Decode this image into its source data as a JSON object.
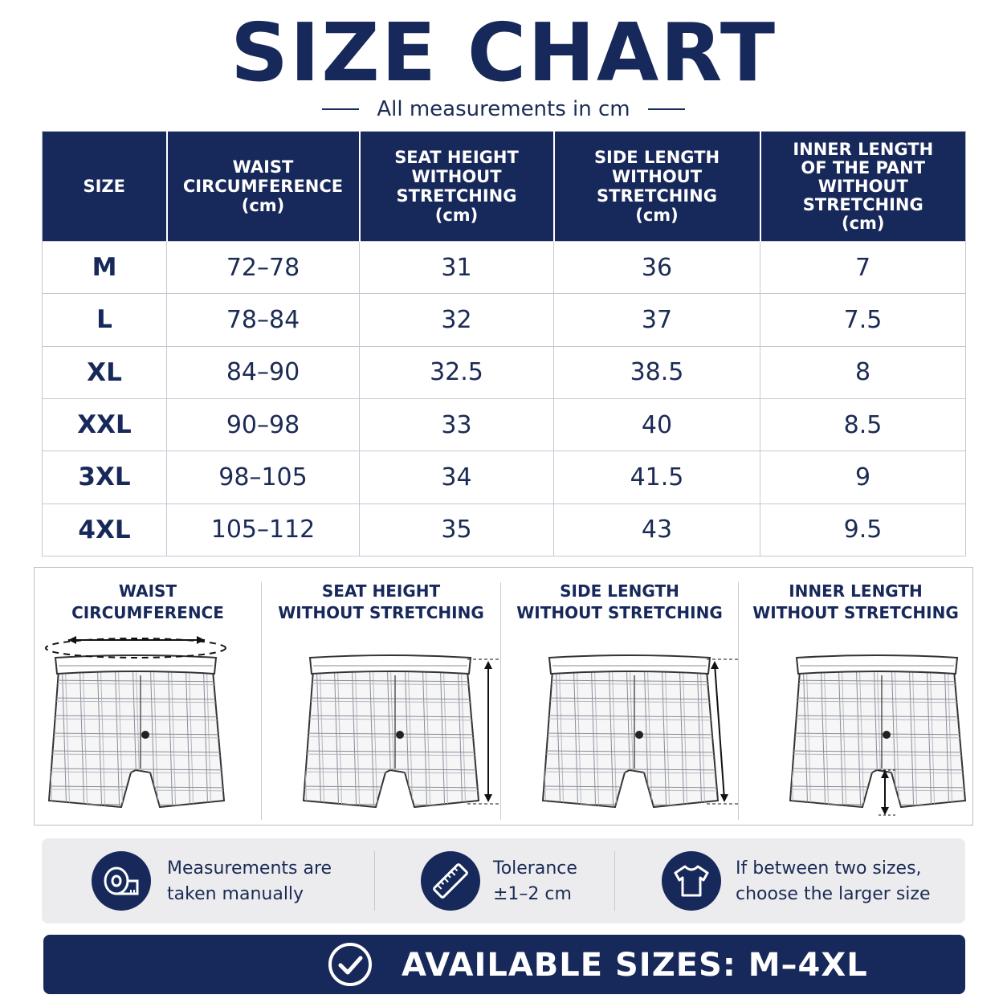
{
  "title": "SIZE CHART",
  "subtitle": "All measurements in cm",
  "table": {
    "headers": [
      [
        "SIZE"
      ],
      [
        "WAIST",
        "CIRCUMFERENCE",
        "(cm)"
      ],
      [
        "SEAT HEIGHT",
        "WITHOUT",
        "STRETCHING",
        "(cm)"
      ],
      [
        "SIDE LENGTH",
        "WITHOUT",
        "STRETCHING",
        "(cm)"
      ],
      [
        "INNER LENGTH",
        "OF THE PANT",
        "WITHOUT",
        "STRETCHING",
        "(cm)"
      ]
    ],
    "rows": [
      [
        "M",
        "72–78",
        "31",
        "36",
        "7"
      ],
      [
        "L",
        "78–84",
        "32",
        "37",
        "7.5"
      ],
      [
        "XL",
        "84–90",
        "32.5",
        "38.5",
        "8"
      ],
      [
        "XXL",
        "90–98",
        "33",
        "40",
        "8.5"
      ],
      [
        "3XL",
        "98–105",
        "34",
        "41.5",
        "9"
      ],
      [
        "4XL",
        "105–112",
        "35",
        "43",
        "9.5"
      ]
    ]
  },
  "diagrams": [
    {
      "label": [
        "WAIST",
        "CIRCUMFERENCE"
      ],
      "measure": "waist"
    },
    {
      "label": [
        "SEAT HEIGHT",
        "WITHOUT STRETCHING"
      ],
      "measure": "seat"
    },
    {
      "label": [
        "SIDE LENGTH",
        "WITHOUT STRETCHING"
      ],
      "measure": "side"
    },
    {
      "label": [
        "INNER LENGTH",
        "WITHOUT STRETCHING"
      ],
      "measure": "inner"
    }
  ],
  "info": [
    {
      "icon": "measuring-tape-icon",
      "lines": [
        "Measurements are",
        "taken manually"
      ]
    },
    {
      "icon": "ruler-icon",
      "lines": [
        "Tolerance",
        "±1–2 cm"
      ]
    },
    {
      "icon": "tshirt-icon",
      "lines": [
        "If between two sizes,",
        "choose the larger size"
      ]
    }
  ],
  "banner": {
    "icon": "checkmark-circle-icon",
    "text": "AVAILABLE SIZES: M–4XL"
  },
  "colors": {
    "navy": "#17285a",
    "light_gray": "#ececee",
    "text": "#1b2b55"
  }
}
